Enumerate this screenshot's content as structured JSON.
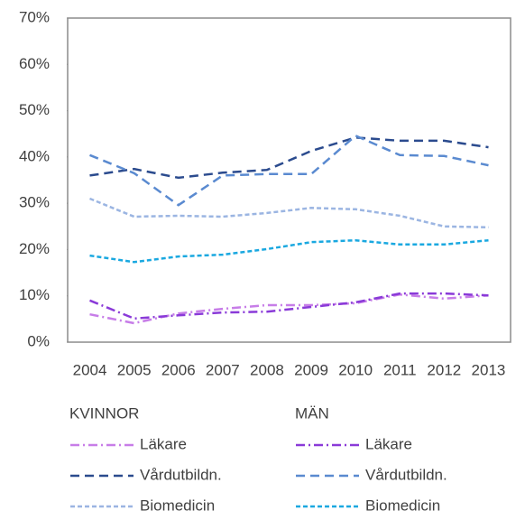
{
  "chart_data": {
    "type": "line",
    "categories": [
      "2004",
      "2005",
      "2006",
      "2007",
      "2008",
      "2009",
      "2010",
      "2011",
      "2012",
      "2013"
    ],
    "ylim": [
      0,
      70
    ],
    "yticks": [
      {
        "value": 0,
        "label": "0%"
      },
      {
        "value": 10,
        "label": "10%"
      },
      {
        "value": 20,
        "label": "20%"
      },
      {
        "value": 30,
        "label": "30%"
      },
      {
        "value": 40,
        "label": "40%"
      },
      {
        "value": 50,
        "label": "50%"
      },
      {
        "value": 60,
        "label": "60%"
      },
      {
        "value": 70,
        "label": "70%"
      }
    ],
    "legend_titles": [
      "KVINNOR",
      "MÄN"
    ],
    "series": [
      {
        "name": "Läkare",
        "color": "#c77de8",
        "dash": "dashdot",
        "values": [
          6.0,
          4.1,
          6.2,
          7.2,
          8.0,
          8.0,
          8.4,
          10.3,
          9.4,
          10.1
        ]
      },
      {
        "name": "Läkare",
        "color": "#8a3ad8",
        "dash": "dashdot",
        "values": [
          9.0,
          5.1,
          5.8,
          6.4,
          6.6,
          7.6,
          8.6,
          10.5,
          10.5,
          10.1
        ]
      },
      {
        "name": "Vårdutbildn.",
        "color": "#2b4b8e",
        "dash": "dash",
        "values": [
          36.0,
          37.4,
          35.5,
          36.6,
          37.2,
          41.3,
          44.2,
          43.5,
          43.5,
          42.1
        ]
      },
      {
        "name": "Vårdutbildn.",
        "color": "#5a8ad0",
        "dash": "dash",
        "values": [
          40.4,
          36.5,
          29.6,
          36.0,
          36.3,
          36.3,
          44.6,
          40.4,
          40.2,
          38.2
        ]
      },
      {
        "name": "Biomedicin",
        "color": "#9bb5e2",
        "dash": "shortdash",
        "values": [
          31.0,
          27.1,
          27.3,
          27.1,
          27.9,
          29.0,
          28.7,
          27.3,
          25.0,
          24.8
        ]
      },
      {
        "name": "Biomedicin",
        "color": "#1aa8e0",
        "dash": "shortdash",
        "values": [
          18.7,
          17.3,
          18.5,
          18.9,
          20.1,
          21.6,
          22.0,
          21.1,
          21.1,
          22.0
        ]
      }
    ]
  }
}
